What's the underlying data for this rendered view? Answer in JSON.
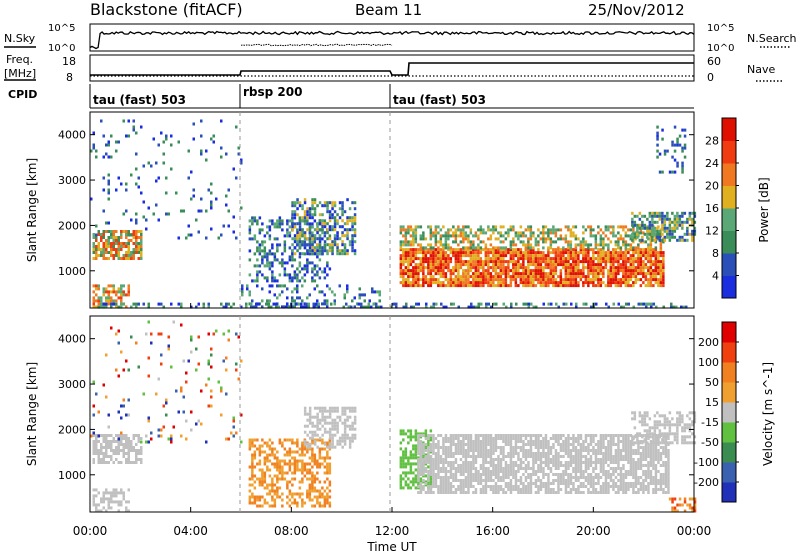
{
  "header": {
    "station": "Blackstone (fitACF)",
    "beam": "Beam 11",
    "date": "25/Nov/2012"
  },
  "noise_panel": {
    "left_label": "N.Sky",
    "right_label": "N.Search",
    "left_ticks": [
      "10^5",
      "10^0"
    ],
    "right_ticks": [
      "10^5",
      "10^0"
    ]
  },
  "freq_panel": {
    "left_label_line1": "Freq.",
    "left_label_line2": "[MHz]",
    "right_label": "Nave",
    "left_ticks": [
      "18",
      "8"
    ],
    "right_ticks": [
      "60",
      "0"
    ]
  },
  "cpid": {
    "label": "CPID",
    "segments": [
      {
        "start_hour": 0,
        "end_hour": 6,
        "name": "tau (fast) 503"
      },
      {
        "start_hour": 6,
        "end_hour": 12,
        "name": "rbsp 200"
      },
      {
        "start_hour": 12,
        "end_hour": 24,
        "name": "tau (fast) 503"
      }
    ]
  },
  "x_axis": {
    "label": "Time UT",
    "ticks": [
      "00:00",
      "04:00",
      "08:00",
      "12:00",
      "16:00",
      "20:00",
      "00:00"
    ],
    "tick_hours": [
      0,
      4,
      8,
      12,
      16,
      20,
      24
    ],
    "range_hours": [
      0,
      24
    ]
  },
  "chart_data": [
    {
      "type": "heatmap",
      "name": "power",
      "ylabel": "Slant Range [km]",
      "yticks": [
        1000,
        2000,
        3000,
        4000
      ],
      "ylim": [
        180,
        4500
      ],
      "colorbar_label": "Power [dB]",
      "colorbar_ticks": [
        "4",
        "8",
        "12",
        "16",
        "20",
        "24",
        "28"
      ],
      "colors": [
        "#1a2ee0",
        "#2a4fb8",
        "#3a8c58",
        "#5aa876",
        "#e0b020",
        "#f07820",
        "#f03c10",
        "#e01000"
      ],
      "scatter_regions": [
        {
          "t": [
            0.1,
            2.0
          ],
          "r": [
            1300,
            1900
          ],
          "dens": 0.75,
          "lvl": [
            2,
            6
          ]
        },
        {
          "t": [
            0.1,
            1.5
          ],
          "r": [
            220,
            700
          ],
          "dens": 0.6,
          "lvl": [
            3,
            6
          ]
        },
        {
          "t": [
            0.0,
            6.0
          ],
          "r": [
            1700,
            4400
          ],
          "dens": 0.06,
          "lvl": [
            0,
            2
          ]
        },
        {
          "t": [
            6.3,
            9.5
          ],
          "r": [
            800,
            2200
          ],
          "dens": 0.35,
          "lvl": [
            0,
            3
          ]
        },
        {
          "t": [
            8.0,
            10.5
          ],
          "r": [
            1400,
            2600
          ],
          "dens": 0.55,
          "lvl": [
            0,
            4
          ]
        },
        {
          "t": [
            6.0,
            11.5
          ],
          "r": [
            200,
            700
          ],
          "dens": 0.25,
          "lvl": [
            0,
            3
          ]
        },
        {
          "t": [
            12.3,
            22.8
          ],
          "r": [
            700,
            1500
          ],
          "dens": 0.85,
          "lvl": [
            4,
            7
          ]
        },
        {
          "t": [
            12.3,
            22.8
          ],
          "r": [
            1500,
            2000
          ],
          "dens": 0.55,
          "lvl": [
            2,
            5
          ]
        },
        {
          "t": [
            21.5,
            24.0
          ],
          "r": [
            1700,
            2300
          ],
          "dens": 0.6,
          "lvl": [
            1,
            4
          ]
        },
        {
          "t": [
            22.5,
            23.6
          ],
          "r": [
            3200,
            4200
          ],
          "dens": 0.2,
          "lvl": [
            0,
            2
          ]
        },
        {
          "t": [
            0.0,
            24.0
          ],
          "r": [
            180,
            300
          ],
          "dens": 0.35,
          "lvl": [
            0,
            3
          ]
        }
      ]
    },
    {
      "type": "heatmap",
      "name": "velocity",
      "ylabel": "Slant Range [km]",
      "yticks": [
        1000,
        2000,
        3000,
        4000
      ],
      "ylim": [
        180,
        4500
      ],
      "colorbar_label": "Velocity [m s^-1]",
      "colorbar_ticks": [
        "200",
        "100",
        "50",
        "15",
        "-15",
        "-50",
        "-100",
        "-200"
      ],
      "colors": [
        "#2030b8",
        "#3a60b0",
        "#3a8c50",
        "#60c040",
        "#c0c0c0",
        "#f0a030",
        "#f08020",
        "#f04010",
        "#e00000"
      ],
      "scatter_regions": [
        {
          "t": [
            0.1,
            2.0
          ],
          "r": [
            1300,
            1900
          ],
          "dens": 0.7,
          "lvl": [
            4,
            4
          ]
        },
        {
          "t": [
            0.1,
            1.5
          ],
          "r": [
            220,
            700
          ],
          "dens": 0.5,
          "lvl": [
            4,
            4
          ]
        },
        {
          "t": [
            0.0,
            6.0
          ],
          "r": [
            1700,
            4400
          ],
          "dens": 0.05,
          "lvl": [
            0,
            8
          ]
        },
        {
          "t": [
            6.3,
            9.5
          ],
          "r": [
            300,
            1800
          ],
          "dens": 0.5,
          "lvl": [
            5,
            6
          ]
        },
        {
          "t": [
            8.5,
            10.5
          ],
          "r": [
            1600,
            2500
          ],
          "dens": 0.55,
          "lvl": [
            4,
            4
          ]
        },
        {
          "t": [
            12.3,
            13.5
          ],
          "r": [
            700,
            2000
          ],
          "dens": 0.6,
          "lvl": [
            3,
            3
          ]
        },
        {
          "t": [
            13.0,
            23.0
          ],
          "r": [
            600,
            1900
          ],
          "dens": 0.75,
          "lvl": [
            4,
            4
          ]
        },
        {
          "t": [
            21.5,
            24.0
          ],
          "r": [
            1700,
            2400
          ],
          "dens": 0.55,
          "lvl": [
            4,
            4
          ]
        },
        {
          "t": [
            23.0,
            24.0
          ],
          "r": [
            200,
            500
          ],
          "dens": 0.5,
          "lvl": [
            5,
            7
          ]
        }
      ]
    }
  ]
}
